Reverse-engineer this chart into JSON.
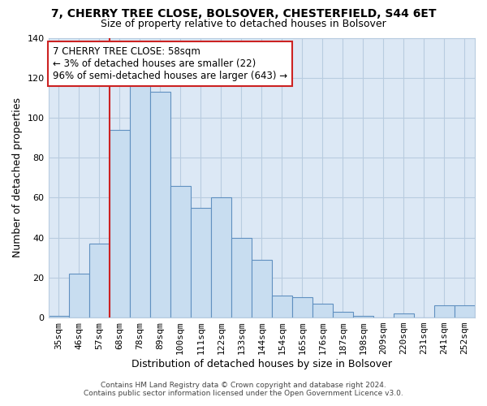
{
  "title": "7, CHERRY TREE CLOSE, BOLSOVER, CHESTERFIELD, S44 6ET",
  "subtitle": "Size of property relative to detached houses in Bolsover",
  "xlabel": "Distribution of detached houses by size in Bolsover",
  "ylabel": "Number of detached properties",
  "bar_labels": [
    "35sqm",
    "46sqm",
    "57sqm",
    "68sqm",
    "78sqm",
    "89sqm",
    "100sqm",
    "111sqm",
    "122sqm",
    "133sqm",
    "144sqm",
    "154sqm",
    "165sqm",
    "176sqm",
    "187sqm",
    "198sqm",
    "209sqm",
    "220sqm",
    "231sqm",
    "241sqm",
    "252sqm"
  ],
  "bar_values": [
    1,
    22,
    37,
    94,
    118,
    113,
    66,
    55,
    60,
    40,
    29,
    11,
    10,
    7,
    3,
    1,
    0,
    2,
    0,
    6,
    6
  ],
  "bar_color": "#c8ddf0",
  "bar_edge_color": "#6090c0",
  "red_line_x": 2.5,
  "annotation_text": "7 CHERRY TREE CLOSE: 58sqm\n← 3% of detached houses are smaller (22)\n96% of semi-detached houses are larger (643) →",
  "annotation_box_color": "#ffffff",
  "annotation_box_edge_color": "#cc2222",
  "ylim": [
    0,
    140
  ],
  "yticks": [
    0,
    20,
    40,
    60,
    80,
    100,
    120,
    140
  ],
  "footnote1": "Contains HM Land Registry data © Crown copyright and database right 2024.",
  "footnote2": "Contains public sector information licensed under the Open Government Licence v3.0.",
  "bg_color": "#ffffff",
  "plot_bg_color": "#dce8f5",
  "grid_color": "#b8cce0",
  "title_fontsize": 10,
  "subtitle_fontsize": 9,
  "axis_label_fontsize": 9,
  "tick_fontsize": 8,
  "annotation_fontsize": 8.5,
  "footnote_fontsize": 6.5
}
